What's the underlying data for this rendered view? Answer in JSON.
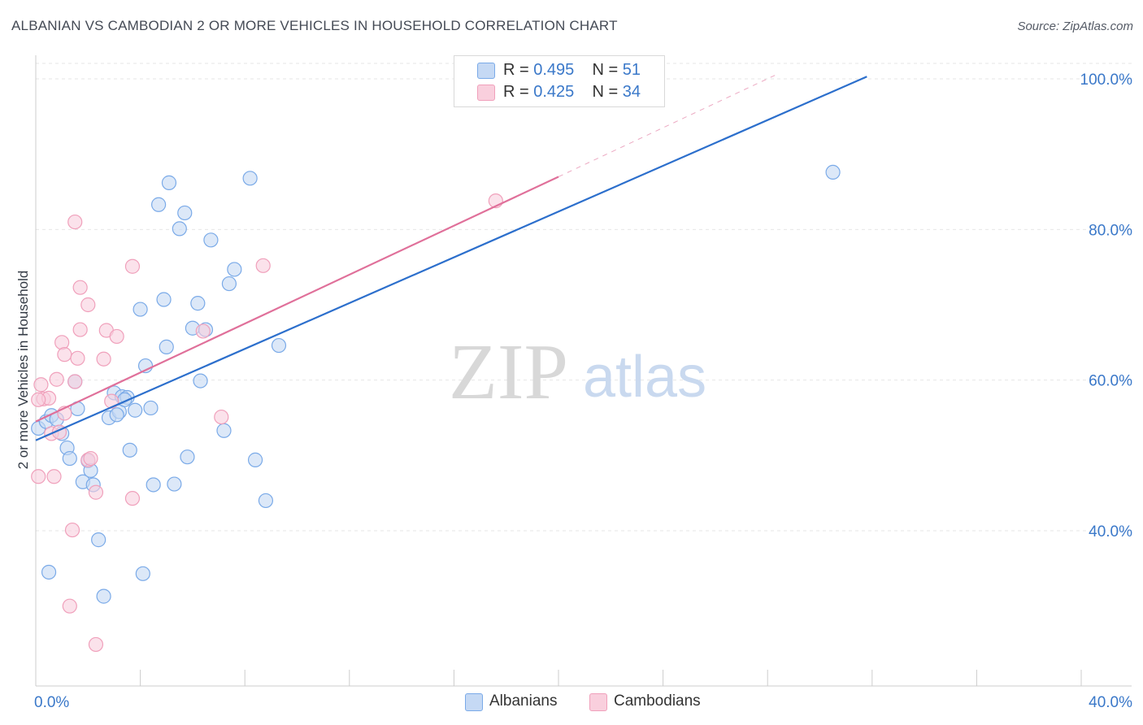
{
  "chart_data": {
    "type": "scatter",
    "title": "ALBANIAN VS CAMBODIAN 2 OR MORE VEHICLES IN HOUSEHOLD CORRELATION CHART",
    "source": "Source: ZipAtlas.com",
    "xlabel": "",
    "ylabel": "2 or more Vehicles in Household",
    "xlim": [
      0,
      40
    ],
    "ylim": [
      20,
      102
    ],
    "x_ticks": [
      "0.0%",
      "40.0%"
    ],
    "y_ticks": [
      {
        "value": 40,
        "label": "40.0%"
      },
      {
        "value": 60,
        "label": "60.0%"
      },
      {
        "value": 80,
        "label": "80.0%"
      },
      {
        "value": 100,
        "label": "100.0%"
      }
    ],
    "grid": true,
    "watermark": "ZIPatlas",
    "legend_top": [
      {
        "r_label": "R = ",
        "r_value": "0.495",
        "n_label": "N = ",
        "n_value": "51"
      },
      {
        "r_label": "R = ",
        "r_value": "0.425",
        "n_label": "N = ",
        "n_value": "34"
      }
    ],
    "series": [
      {
        "name": "Albanians",
        "color": "#7aaae8",
        "fill": "#c5d9f4",
        "line_color": "#2c6fcc",
        "trend": {
          "x0": 0,
          "y0": 52.0,
          "x1": 31.8,
          "y1": 100.3
        },
        "points": [
          [
            0.1,
            53.6
          ],
          [
            0.4,
            54.5
          ],
          [
            0.6,
            55.3
          ],
          [
            0.8,
            54.8
          ],
          [
            1.0,
            52.9
          ],
          [
            1.2,
            51.0
          ],
          [
            1.3,
            49.6
          ],
          [
            1.5,
            59.8
          ],
          [
            1.6,
            56.2
          ],
          [
            1.8,
            46.5
          ],
          [
            2.0,
            49.3
          ],
          [
            2.1,
            48.0
          ],
          [
            2.2,
            46.1
          ],
          [
            2.4,
            38.8
          ],
          [
            2.6,
            31.3
          ],
          [
            2.8,
            55.0
          ],
          [
            3.0,
            58.3
          ],
          [
            3.2,
            55.8
          ],
          [
            3.3,
            57.8
          ],
          [
            3.5,
            57.7
          ],
          [
            3.6,
            50.7
          ],
          [
            3.8,
            56.0
          ],
          [
            4.0,
            69.4
          ],
          [
            4.1,
            34.3
          ],
          [
            4.2,
            61.9
          ],
          [
            4.4,
            56.3
          ],
          [
            4.5,
            46.1
          ],
          [
            4.7,
            83.3
          ],
          [
            4.9,
            70.7
          ],
          [
            5.0,
            64.4
          ],
          [
            5.1,
            86.2
          ],
          [
            5.3,
            46.2
          ],
          [
            5.5,
            80.1
          ],
          [
            5.7,
            82.2
          ],
          [
            5.8,
            49.8
          ],
          [
            6.0,
            66.9
          ],
          [
            6.2,
            70.2
          ],
          [
            6.3,
            59.9
          ],
          [
            6.5,
            66.7
          ],
          [
            6.7,
            78.6
          ],
          [
            7.2,
            53.3
          ],
          [
            7.4,
            72.8
          ],
          [
            7.6,
            74.7
          ],
          [
            8.2,
            86.8
          ],
          [
            8.4,
            49.4
          ],
          [
            8.8,
            44.0
          ],
          [
            9.3,
            64.6
          ],
          [
            30.5,
            87.6
          ],
          [
            0.5,
            34.5
          ],
          [
            3.1,
            55.4
          ],
          [
            3.4,
            57.4
          ]
        ]
      },
      {
        "name": "Cambodians",
        "color": "#f0a0bb",
        "fill": "#f9cfdd",
        "line_color": "#e0709a",
        "trend": {
          "x0": 0,
          "y0": 54.5,
          "x1": 20.0,
          "y1": 87.0
        },
        "trend_dashed": {
          "x0": 20.0,
          "y0": 87.0,
          "x1": 28.3,
          "y1": 100.5
        },
        "points": [
          [
            0.1,
            47.2
          ],
          [
            0.2,
            59.4
          ],
          [
            0.3,
            57.5
          ],
          [
            0.5,
            57.6
          ],
          [
            0.6,
            52.9
          ],
          [
            0.7,
            47.2
          ],
          [
            0.8,
            60.1
          ],
          [
            0.9,
            53.1
          ],
          [
            1.0,
            65.0
          ],
          [
            1.1,
            55.6
          ],
          [
            1.1,
            63.4
          ],
          [
            1.3,
            30.0
          ],
          [
            1.4,
            40.1
          ],
          [
            1.5,
            59.8
          ],
          [
            1.5,
            81.0
          ],
          [
            1.6,
            62.9
          ],
          [
            1.7,
            66.7
          ],
          [
            1.7,
            72.3
          ],
          [
            2.0,
            49.4
          ],
          [
            2.0,
            70.0
          ],
          [
            2.3,
            45.1
          ],
          [
            2.3,
            24.9
          ],
          [
            2.6,
            62.8
          ],
          [
            2.7,
            66.6
          ],
          [
            2.9,
            57.2
          ],
          [
            3.1,
            65.8
          ],
          [
            3.7,
            44.3
          ],
          [
            3.7,
            75.1
          ],
          [
            6.4,
            66.5
          ],
          [
            7.1,
            55.1
          ],
          [
            8.7,
            75.2
          ],
          [
            17.6,
            83.8
          ],
          [
            0.1,
            57.4
          ],
          [
            2.1,
            49.6
          ]
        ]
      }
    ]
  }
}
